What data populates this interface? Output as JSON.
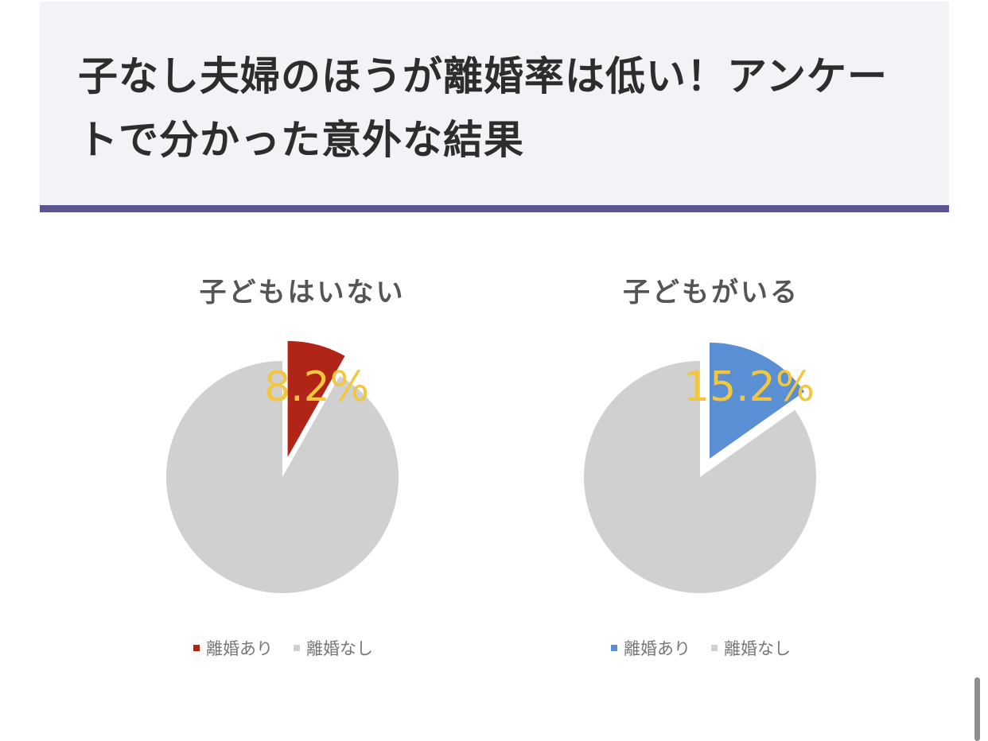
{
  "article": {
    "heading": "子なし夫婦のほうが離婚率は低い！アンケートで分かった意外な結果"
  },
  "chart_data": [
    {
      "type": "pie",
      "title": "子どもはいない",
      "slices": [
        {
          "label": "離婚あり",
          "value": 8.2,
          "color": "#b12418"
        },
        {
          "label": "離婚なし",
          "value": 91.8,
          "color": "#d0d0d0"
        }
      ],
      "data_label": "8.2%",
      "data_label_color": "#f3c640",
      "legend": [
        "離婚あり",
        "離婚なし"
      ],
      "legend_position": "bottom"
    },
    {
      "type": "pie",
      "title": "子どもがいる",
      "slices": [
        {
          "label": "離婚あり",
          "value": 15.2,
          "color": "#5b8fd4"
        },
        {
          "label": "離婚なし",
          "value": 84.8,
          "color": "#d0d0d0"
        }
      ],
      "data_label": "15.2%",
      "data_label_color": "#f3c640",
      "legend": [
        "離婚あり",
        "離婚なし"
      ],
      "legend_position": "bottom"
    }
  ]
}
